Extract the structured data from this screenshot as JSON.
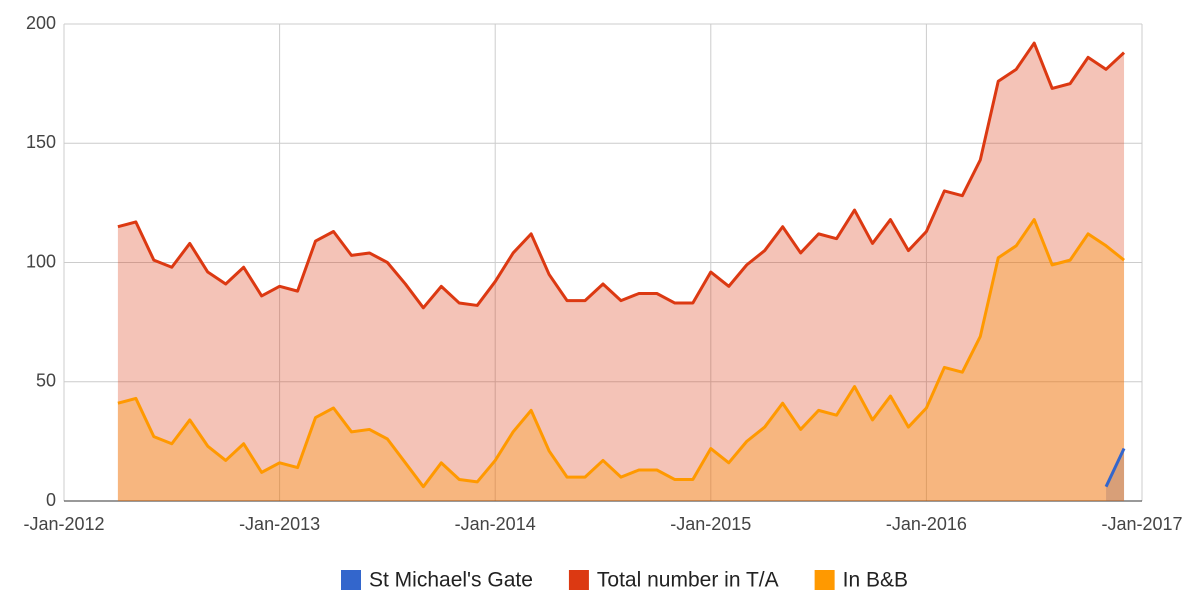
{
  "chart_data": {
    "type": "area",
    "x": [
      "2012-04",
      "2012-05",
      "2012-06",
      "2012-07",
      "2012-08",
      "2012-09",
      "2012-10",
      "2012-11",
      "2012-12",
      "2013-01",
      "2013-02",
      "2013-03",
      "2013-04",
      "2013-05",
      "2013-06",
      "2013-07",
      "2013-08",
      "2013-09",
      "2013-10",
      "2013-11",
      "2013-12",
      "2014-01",
      "2014-02",
      "2014-03",
      "2014-04",
      "2014-05",
      "2014-06",
      "2014-07",
      "2014-08",
      "2014-09",
      "2014-10",
      "2014-11",
      "2014-12",
      "2015-01",
      "2015-02",
      "2015-03",
      "2015-04",
      "2015-05",
      "2015-06",
      "2015-07",
      "2015-08",
      "2015-09",
      "2015-10",
      "2015-11",
      "2015-12",
      "2016-01",
      "2016-02",
      "2016-03",
      "2016-04",
      "2016-05",
      "2016-06",
      "2016-07",
      "2016-08",
      "2016-09",
      "2016-10",
      "2016-11",
      "2016-12"
    ],
    "series": [
      {
        "name": "St Michael's Gate",
        "color": "#3366cc",
        "values": [
          null,
          null,
          null,
          null,
          null,
          null,
          null,
          null,
          null,
          null,
          null,
          null,
          null,
          null,
          null,
          null,
          null,
          null,
          null,
          null,
          null,
          null,
          null,
          null,
          null,
          null,
          null,
          null,
          null,
          null,
          null,
          null,
          null,
          null,
          null,
          null,
          null,
          null,
          null,
          null,
          null,
          null,
          null,
          null,
          null,
          null,
          null,
          null,
          null,
          null,
          null,
          null,
          null,
          null,
          null,
          6,
          22
        ]
      },
      {
        "name": "Total number in T/A",
        "color": "#dc3912",
        "values": [
          115,
          117,
          101,
          98,
          108,
          96,
          91,
          98,
          86,
          90,
          88,
          109,
          113,
          103,
          104,
          100,
          91,
          81,
          90,
          83,
          82,
          92,
          104,
          112,
          95,
          84,
          84,
          91,
          84,
          87,
          87,
          83,
          83,
          96,
          90,
          99,
          105,
          115,
          104,
          112,
          110,
          122,
          108,
          118,
          105,
          113,
          130,
          128,
          143,
          176,
          181,
          192,
          173,
          175,
          186,
          181,
          188
        ]
      },
      {
        "name": "In B&B",
        "color": "#ff9900",
        "values": [
          41,
          43,
          27,
          24,
          34,
          23,
          17,
          24,
          12,
          16,
          14,
          35,
          39,
          29,
          30,
          26,
          16,
          6,
          16,
          9,
          8,
          17,
          29,
          38,
          21,
          10,
          10,
          17,
          10,
          13,
          13,
          9,
          9,
          22,
          16,
          25,
          31,
          41,
          30,
          38,
          36,
          48,
          34,
          44,
          31,
          39,
          56,
          54,
          69,
          102,
          107,
          118,
          99,
          101,
          112,
          107,
          101
        ]
      }
    ],
    "xlim": [
      "2012-01",
      "2017-01"
    ],
    "xticks": [
      {
        "value": "2012-01",
        "label": "-Jan-2012"
      },
      {
        "value": "2013-01",
        "label": "-Jan-2013"
      },
      {
        "value": "2014-01",
        "label": "-Jan-2014"
      },
      {
        "value": "2015-01",
        "label": "-Jan-2015"
      },
      {
        "value": "2016-01",
        "label": "-Jan-2016"
      },
      {
        "value": "2017-01",
        "label": "-Jan-2017"
      }
    ],
    "ylim": [
      0,
      200
    ],
    "yticks": [
      0,
      50,
      100,
      150,
      200
    ],
    "grid": true,
    "legend": "bottom"
  }
}
